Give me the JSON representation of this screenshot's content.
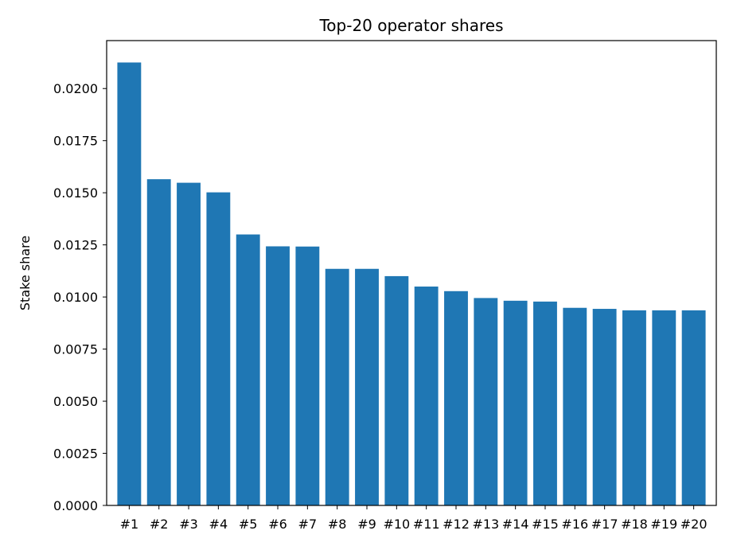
{
  "chart_data": {
    "type": "bar",
    "title": "Top-20 operator shares",
    "xlabel": "",
    "ylabel": "Stake share",
    "categories": [
      "#1",
      "#2",
      "#3",
      "#4",
      "#5",
      "#6",
      "#7",
      "#8",
      "#9",
      "#10",
      "#11",
      "#12",
      "#13",
      "#14",
      "#15",
      "#16",
      "#17",
      "#18",
      "#19",
      "#20"
    ],
    "values": [
      0.02125,
      0.01565,
      0.01548,
      0.01502,
      0.013,
      0.01243,
      0.01242,
      0.01135,
      0.01135,
      0.011,
      0.0105,
      0.01028,
      0.00995,
      0.00982,
      0.00978,
      0.00948,
      0.00943,
      0.00936,
      0.00936,
      0.00936
    ],
    "ylim": [
      0,
      0.0223
    ],
    "yticks": [
      "0.0000",
      "0.0025",
      "0.0050",
      "0.0075",
      "0.0100",
      "0.0125",
      "0.0150",
      "0.0175",
      "0.0200"
    ],
    "grid": false,
    "bar_color": "#1f77b4"
  }
}
